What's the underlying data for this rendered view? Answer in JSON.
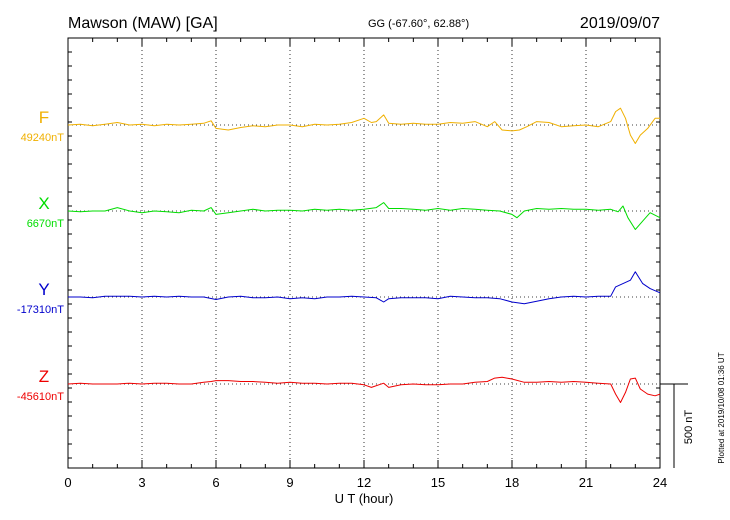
{
  "header": {
    "station": "Mawson (MAW)  [GA]",
    "coords": "GG (-67.60°,  62.88°)",
    "date": "2019/09/07"
  },
  "footer_note": "Plotted at 2019/10/08 01:36 UT",
  "scale_bar_label": "500 nT",
  "colors": {
    "F": "#f0b000",
    "X": "#00dd00",
    "Y": "#0000cc",
    "Z": "#ee0000",
    "axis": "#000000",
    "grid": "#000000"
  },
  "chart_data": {
    "type": "line",
    "xlabel": "U T (hour)",
    "xlim": [
      0,
      24
    ],
    "xticks": [
      "0",
      "3",
      "6",
      "9",
      "12",
      "15",
      "18",
      "21",
      "24"
    ],
    "scale_bar_nT": 500,
    "grid": "dotted",
    "series": [
      {
        "name": "F",
        "baseline_label": "49240nT",
        "x": [
          0,
          0.5,
          1,
          1.5,
          2,
          2.5,
          3,
          3.5,
          4,
          4.5,
          5,
          5.5,
          5.8,
          6,
          6.5,
          7,
          7.5,
          8,
          8.5,
          9,
          9.5,
          10,
          10.5,
          11,
          11.5,
          12,
          12.3,
          12.5,
          12.8,
          13,
          13.5,
          14,
          14.5,
          15,
          15.5,
          16,
          16.5,
          17,
          17.3,
          17.6,
          18,
          18.3,
          18.6,
          19,
          19.5,
          20,
          20.5,
          21,
          21.5,
          22,
          22.2,
          22.4,
          22.6,
          22.8,
          23,
          23.2,
          23.5,
          23.8,
          24
        ],
        "values": [
          0,
          5,
          -5,
          5,
          15,
          0,
          5,
          -5,
          5,
          0,
          5,
          10,
          25,
          -20,
          -30,
          -15,
          -5,
          -10,
          0,
          0,
          -10,
          5,
          0,
          5,
          15,
          40,
          15,
          20,
          60,
          10,
          5,
          10,
          5,
          5,
          15,
          10,
          20,
          -10,
          20,
          -30,
          -35,
          -30,
          -10,
          20,
          15,
          -10,
          -5,
          0,
          -10,
          20,
          80,
          100,
          40,
          -60,
          -110,
          -60,
          -20,
          40,
          40
        ]
      },
      {
        "name": "X",
        "baseline_label": "6670nT",
        "x": [
          0,
          0.5,
          1,
          1.5,
          2,
          2.5,
          3,
          3.5,
          4,
          4.5,
          5,
          5.5,
          5.8,
          6,
          6.5,
          7,
          7.5,
          8,
          8.5,
          9,
          9.5,
          10,
          10.5,
          11,
          11.5,
          12,
          12.5,
          12.8,
          13,
          13.5,
          14,
          14.5,
          15,
          15.5,
          16,
          16.5,
          17,
          17.5,
          18,
          18.2,
          18.5,
          19,
          19.5,
          20,
          20.5,
          21,
          21.5,
          22,
          22.3,
          22.5,
          22.7,
          23,
          23.3,
          23.6,
          24
        ],
        "values": [
          0,
          -5,
          0,
          0,
          20,
          0,
          -10,
          0,
          -5,
          -10,
          5,
          0,
          20,
          -20,
          -10,
          0,
          10,
          0,
          5,
          5,
          0,
          10,
          5,
          10,
          5,
          10,
          20,
          50,
          15,
          15,
          10,
          5,
          15,
          5,
          15,
          10,
          5,
          0,
          -20,
          -40,
          0,
          15,
          10,
          15,
          10,
          10,
          5,
          10,
          -5,
          30,
          -40,
          -110,
          -60,
          -10,
          -40
        ]
      },
      {
        "name": "Y",
        "baseline_label": "-17310nT",
        "x": [
          0,
          0.5,
          1,
          1.5,
          2,
          2.5,
          3,
          3.5,
          4,
          4.5,
          5,
          5.5,
          6,
          6.5,
          7,
          7.5,
          8,
          8.5,
          9,
          9.5,
          10,
          10.5,
          11,
          11.5,
          12,
          12.5,
          12.8,
          13,
          13.5,
          14,
          14.5,
          15,
          15.5,
          16,
          16.5,
          17,
          17.5,
          18,
          18.5,
          19,
          19.5,
          20,
          20.5,
          21,
          21.5,
          22,
          22.2,
          22.5,
          22.8,
          23,
          23.3,
          23.6,
          24
        ],
        "values": [
          0,
          0,
          -5,
          5,
          5,
          5,
          0,
          5,
          0,
          5,
          0,
          0,
          -15,
          0,
          5,
          -5,
          -5,
          0,
          -10,
          -5,
          -10,
          0,
          0,
          5,
          0,
          -5,
          -30,
          -10,
          -5,
          -5,
          -5,
          -10,
          5,
          0,
          -5,
          -5,
          -10,
          -30,
          -40,
          -25,
          -10,
          0,
          5,
          0,
          5,
          5,
          60,
          80,
          100,
          150,
          80,
          50,
          25
        ]
      },
      {
        "name": "Z",
        "baseline_label": "-45610nT",
        "x": [
          0,
          0.5,
          1,
          1.5,
          2,
          2.5,
          3,
          3.5,
          4,
          4.5,
          5,
          5.5,
          5.8,
          6,
          6.5,
          7,
          7.5,
          8,
          8.5,
          9,
          9.5,
          10,
          10.5,
          11,
          11.5,
          12,
          12.3,
          12.8,
          13,
          13.5,
          14,
          14.5,
          15,
          15.5,
          16,
          16.5,
          17,
          17.3,
          17.6,
          18,
          18.5,
          19,
          19.5,
          20,
          20.5,
          21,
          21.5,
          22,
          22.2,
          22.4,
          22.6,
          22.8,
          23,
          23.2,
          23.5,
          23.8,
          24
        ],
        "values": [
          0,
          5,
          0,
          0,
          0,
          5,
          0,
          5,
          5,
          0,
          0,
          10,
          15,
          20,
          20,
          15,
          15,
          10,
          5,
          10,
          5,
          5,
          0,
          5,
          5,
          -5,
          -20,
          5,
          -20,
          -5,
          0,
          -5,
          -5,
          0,
          0,
          10,
          15,
          35,
          40,
          30,
          10,
          10,
          15,
          10,
          15,
          10,
          5,
          0,
          -60,
          -110,
          -50,
          30,
          35,
          -30,
          -60,
          -70,
          -60
        ]
      }
    ]
  }
}
